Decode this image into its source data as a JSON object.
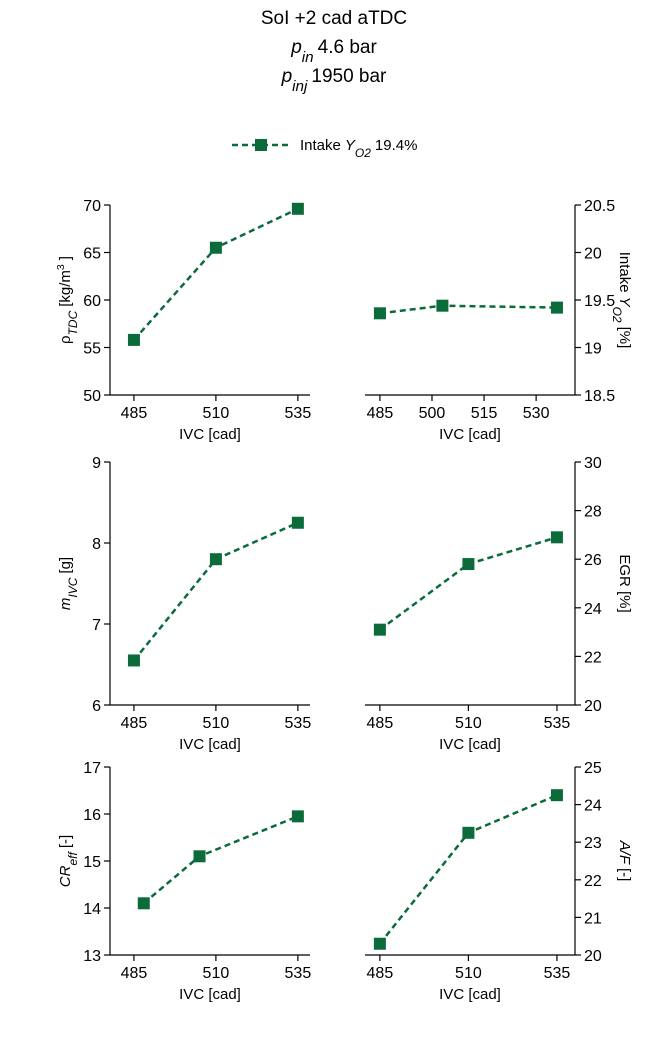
{
  "title_lines": [
    [
      {
        "text": "SoI +2 cad aTDC"
      }
    ],
    [
      {
        "text": "p",
        "style": "italic"
      },
      {
        "text": "in",
        "style": "sub-italic"
      },
      {
        "text": "4.6 bar"
      }
    ],
    [
      {
        "text": "p",
        "style": "italic"
      },
      {
        "text": "inj",
        "style": "sub-italic"
      },
      {
        "text": "1950 bar"
      }
    ]
  ],
  "legend": [
    {
      "text": "Intake"
    },
    {
      "text": "Y",
      "style": "italic"
    },
    {
      "text": "O2",
      "style": "sub-italic"
    },
    {
      "text": "19.4%"
    }
  ],
  "chart_data": [
    {
      "type": "line",
      "yaxis": "left",
      "xlabel": "IVC [cad]",
      "ylabel": [
        {
          "text": "ρ"
        },
        {
          "text": "TDC",
          "style": "sub-italic"
        },
        {
          "text": "[kg/m"
        },
        {
          "text": "3",
          "style": "sup"
        },
        {
          "text": "]"
        }
      ],
      "x": [
        485,
        510,
        535
      ],
      "series": [
        {
          "color": "#0b6b3a",
          "values": [
            55.8,
            65.5,
            69.6
          ]
        }
      ],
      "xlim": [
        477.7,
        538.7
      ],
      "xticks": [
        485,
        510,
        535
      ],
      "ylim": [
        50,
        70
      ],
      "yticks": [
        50,
        55,
        60,
        65,
        70
      ]
    },
    {
      "type": "line",
      "yaxis": "right",
      "xlabel": "IVC [cad]",
      "ylabel": [
        {
          "text": "Intake"
        },
        {
          "text": "Y",
          "style": "italic"
        },
        {
          "text": "O2",
          "style": "sub-italic"
        },
        {
          "text": "[%]"
        }
      ],
      "x": [
        485,
        503,
        536
      ],
      "series": [
        {
          "color": "#0b6b3a",
          "values": [
            19.36,
            19.44,
            19.42
          ]
        }
      ],
      "xlim": [
        480.7,
        541.2
      ],
      "xticks": [
        485,
        500,
        515,
        530
      ],
      "ylim": [
        18.5,
        20.5
      ],
      "yticks": [
        18.5,
        19,
        19.5,
        20,
        20.5
      ]
    },
    {
      "type": "line",
      "yaxis": "left",
      "xlabel": "IVC [cad]",
      "ylabel": [
        {
          "text": "m",
          "style": "italic"
        },
        {
          "text": "IVC",
          "style": "sub-italic"
        },
        {
          "text": "[g]"
        }
      ],
      "x": [
        485,
        510,
        535
      ],
      "series": [
        {
          "color": "#0b6b3a",
          "values": [
            6.55,
            7.8,
            8.25
          ]
        }
      ],
      "xlim": [
        477.7,
        538.7
      ],
      "xticks": [
        485,
        510,
        535
      ],
      "ylim": [
        6,
        9
      ],
      "yticks": [
        6,
        7,
        8,
        9
      ]
    },
    {
      "type": "line",
      "yaxis": "right",
      "xlabel": "IVC [cad]",
      "ylabel": [
        {
          "text": "EGR [%]"
        }
      ],
      "x": [
        485,
        510,
        535
      ],
      "series": [
        {
          "color": "#0b6b3a",
          "values": [
            23.1,
            25.8,
            26.9
          ]
        }
      ],
      "xlim": [
        480.8,
        540.1
      ],
      "xticks": [
        485,
        510,
        535
      ],
      "ylim": [
        20,
        30
      ],
      "yticks": [
        20,
        22,
        24,
        26,
        28,
        30
      ]
    },
    {
      "type": "line",
      "yaxis": "left",
      "xlabel": "IVC [cad]",
      "ylabel": [
        {
          "text": "CR",
          "style": "italic"
        },
        {
          "text": "eff",
          "style": "sub-italic"
        },
        {
          "text": "[-]"
        }
      ],
      "x": [
        488,
        505,
        535
      ],
      "series": [
        {
          "color": "#0b6b3a",
          "values": [
            14.1,
            15.1,
            15.95
          ]
        }
      ],
      "xlim": [
        477.7,
        538.7
      ],
      "xticks": [
        485,
        510,
        535
      ],
      "ylim": [
        13,
        17
      ],
      "yticks": [
        13,
        14,
        15,
        16,
        17
      ]
    },
    {
      "type": "line",
      "yaxis": "right",
      "xlabel": "IVC [cad]",
      "ylabel": [
        {
          "text": "A/F",
          "style": "italic"
        },
        {
          "text": "[-]"
        }
      ],
      "x": [
        485,
        510,
        535
      ],
      "series": [
        {
          "color": "#0b6b3a",
          "values": [
            20.3,
            23.25,
            24.25
          ]
        }
      ],
      "xlim": [
        480.8,
        540.1
      ],
      "xticks": [
        485,
        510,
        535
      ],
      "ylim": [
        20,
        25
      ],
      "yticks": [
        20,
        21,
        22,
        23,
        24,
        25
      ]
    }
  ]
}
